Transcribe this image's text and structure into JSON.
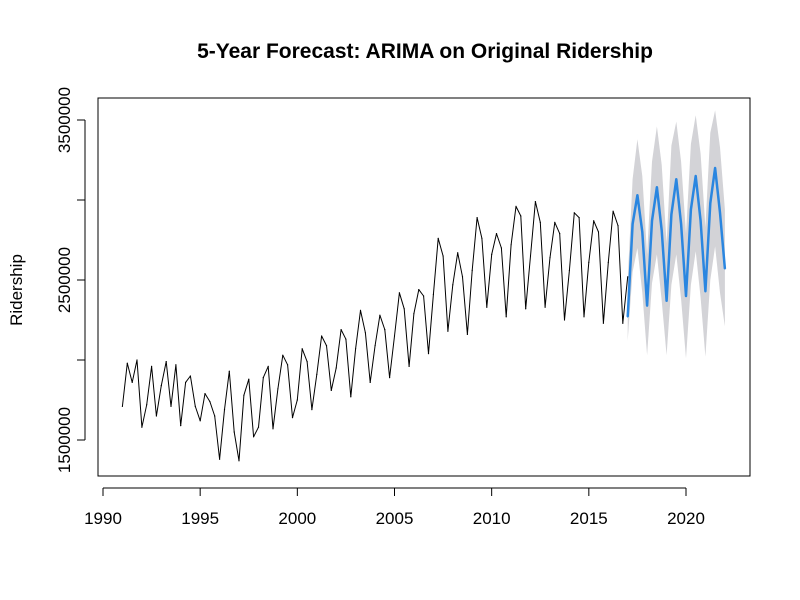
{
  "chart_data": {
    "type": "line",
    "title": "5-Year Forecast: ARIMA on Original Ridership",
    "xlabel": "",
    "ylabel": "Ridership",
    "xlim": [
      1990,
      2023
    ],
    "ylim": [
      1500000,
      3500000
    ],
    "x_ticks": [
      "1990",
      "1995",
      "2000",
      "2005",
      "2010",
      "2015",
      "2020"
    ],
    "y_ticks": [
      "1500000",
      "2500000",
      "3500000"
    ],
    "grid": false,
    "legend": "none",
    "colors": {
      "history": "#000000",
      "forecast": "#2a86e0",
      "interval": "#d3d3d7"
    },
    "series": [
      {
        "role": "history",
        "x": [
          1991.0,
          1991.25,
          1991.5,
          1991.75,
          1992.0,
          1992.25,
          1992.5,
          1992.75,
          1993.0,
          1993.25,
          1993.5,
          1993.75,
          1994.0,
          1994.25,
          1994.5,
          1994.75,
          1995.0,
          1995.25,
          1995.5,
          1995.75,
          1996.0,
          1996.25,
          1996.5,
          1996.75,
          1997.0,
          1997.25,
          1997.5,
          1997.75,
          1998.0,
          1998.25,
          1998.5,
          1998.75,
          1999.0,
          1999.25,
          1999.5,
          1999.75,
          2000.0,
          2000.25,
          2000.5,
          2000.75,
          2001.0,
          2001.25,
          2001.5,
          2001.75,
          2002.0,
          2002.25,
          2002.5,
          2002.75,
          2003.0,
          2003.25,
          2003.5,
          2003.75,
          2004.0,
          2004.25,
          2004.5,
          2004.75,
          2005.0,
          2005.25,
          2005.5,
          2005.75,
          2006.0,
          2006.25,
          2006.5,
          2006.75,
          2007.0,
          2007.25,
          2007.5,
          2007.75,
          2008.0,
          2008.25,
          2008.5,
          2008.75,
          2009.0,
          2009.25,
          2009.5,
          2009.75,
          2010.0,
          2010.25,
          2010.5,
          2010.75,
          2011.0,
          2011.25,
          2011.5,
          2011.75,
          2012.0,
          2012.25,
          2012.5,
          2012.75,
          2013.0,
          2013.25,
          2013.5,
          2013.75,
          2014.0,
          2014.25,
          2014.5,
          2014.75,
          2015.0,
          2015.25,
          2015.5,
          2015.75,
          2016.0,
          2016.25,
          2016.5,
          2016.75,
          2017.0
        ],
        "values": [
          1710000,
          1980000,
          1860000,
          2000000,
          1580000,
          1720000,
          1960000,
          1650000,
          1840000,
          1990000,
          1710000,
          1970000,
          1590000,
          1860000,
          1900000,
          1710000,
          1620000,
          1790000,
          1740000,
          1650000,
          1380000,
          1690000,
          1930000,
          1550000,
          1370000,
          1780000,
          1880000,
          1520000,
          1580000,
          1890000,
          1960000,
          1570000,
          1820000,
          2030000,
          1970000,
          1640000,
          1750000,
          2070000,
          1990000,
          1690000,
          1910000,
          2150000,
          2090000,
          1810000,
          1950000,
          2190000,
          2130000,
          1770000,
          2070000,
          2310000,
          2170000,
          1860000,
          2090000,
          2280000,
          2190000,
          1890000,
          2150000,
          2420000,
          2320000,
          1960000,
          2290000,
          2440000,
          2400000,
          2040000,
          2410000,
          2760000,
          2650000,
          2180000,
          2470000,
          2670000,
          2520000,
          2160000,
          2560000,
          2890000,
          2760000,
          2330000,
          2660000,
          2790000,
          2700000,
          2270000,
          2720000,
          2960000,
          2900000,
          2320000,
          2650000,
          2990000,
          2860000,
          2330000,
          2640000,
          2860000,
          2790000,
          2250000,
          2560000,
          2920000,
          2890000,
          2270000,
          2610000,
          2870000,
          2800000,
          2230000,
          2610000,
          2930000,
          2840000,
          2230000,
          2520000
        ]
      },
      {
        "role": "forecast",
        "x": [
          2017.0,
          2017.25,
          2017.5,
          2017.75,
          2018.0,
          2018.25,
          2018.5,
          2018.75,
          2019.0,
          2019.25,
          2019.5,
          2019.75,
          2020.0,
          2020.25,
          2020.5,
          2020.75,
          2021.0,
          2021.25,
          2021.5,
          2021.75,
          2022.0
        ],
        "values": [
          2270000,
          2850000,
          3030000,
          2800000,
          2340000,
          2870000,
          3080000,
          2810000,
          2370000,
          2910000,
          3130000,
          2850000,
          2400000,
          2940000,
          3150000,
          2870000,
          2430000,
          2980000,
          3200000,
          2920000,
          2570000
        ],
        "lower": [
          2120000,
          2550000,
          2700000,
          2420000,
          2030000,
          2480000,
          2660000,
          2370000,
          2030000,
          2470000,
          2660000,
          2380000,
          2010000,
          2470000,
          2680000,
          2390000,
          2020000,
          2500000,
          2710000,
          2420000,
          2210000
        ],
        "upper": [
          2500000,
          3130000,
          3380000,
          3150000,
          2660000,
          3240000,
          3460000,
          3220000,
          2730000,
          3340000,
          3490000,
          3240000,
          2790000,
          3350000,
          3530000,
          3290000,
          2830000,
          3420000,
          3560000,
          3330000,
          2940000
        ]
      }
    ]
  }
}
